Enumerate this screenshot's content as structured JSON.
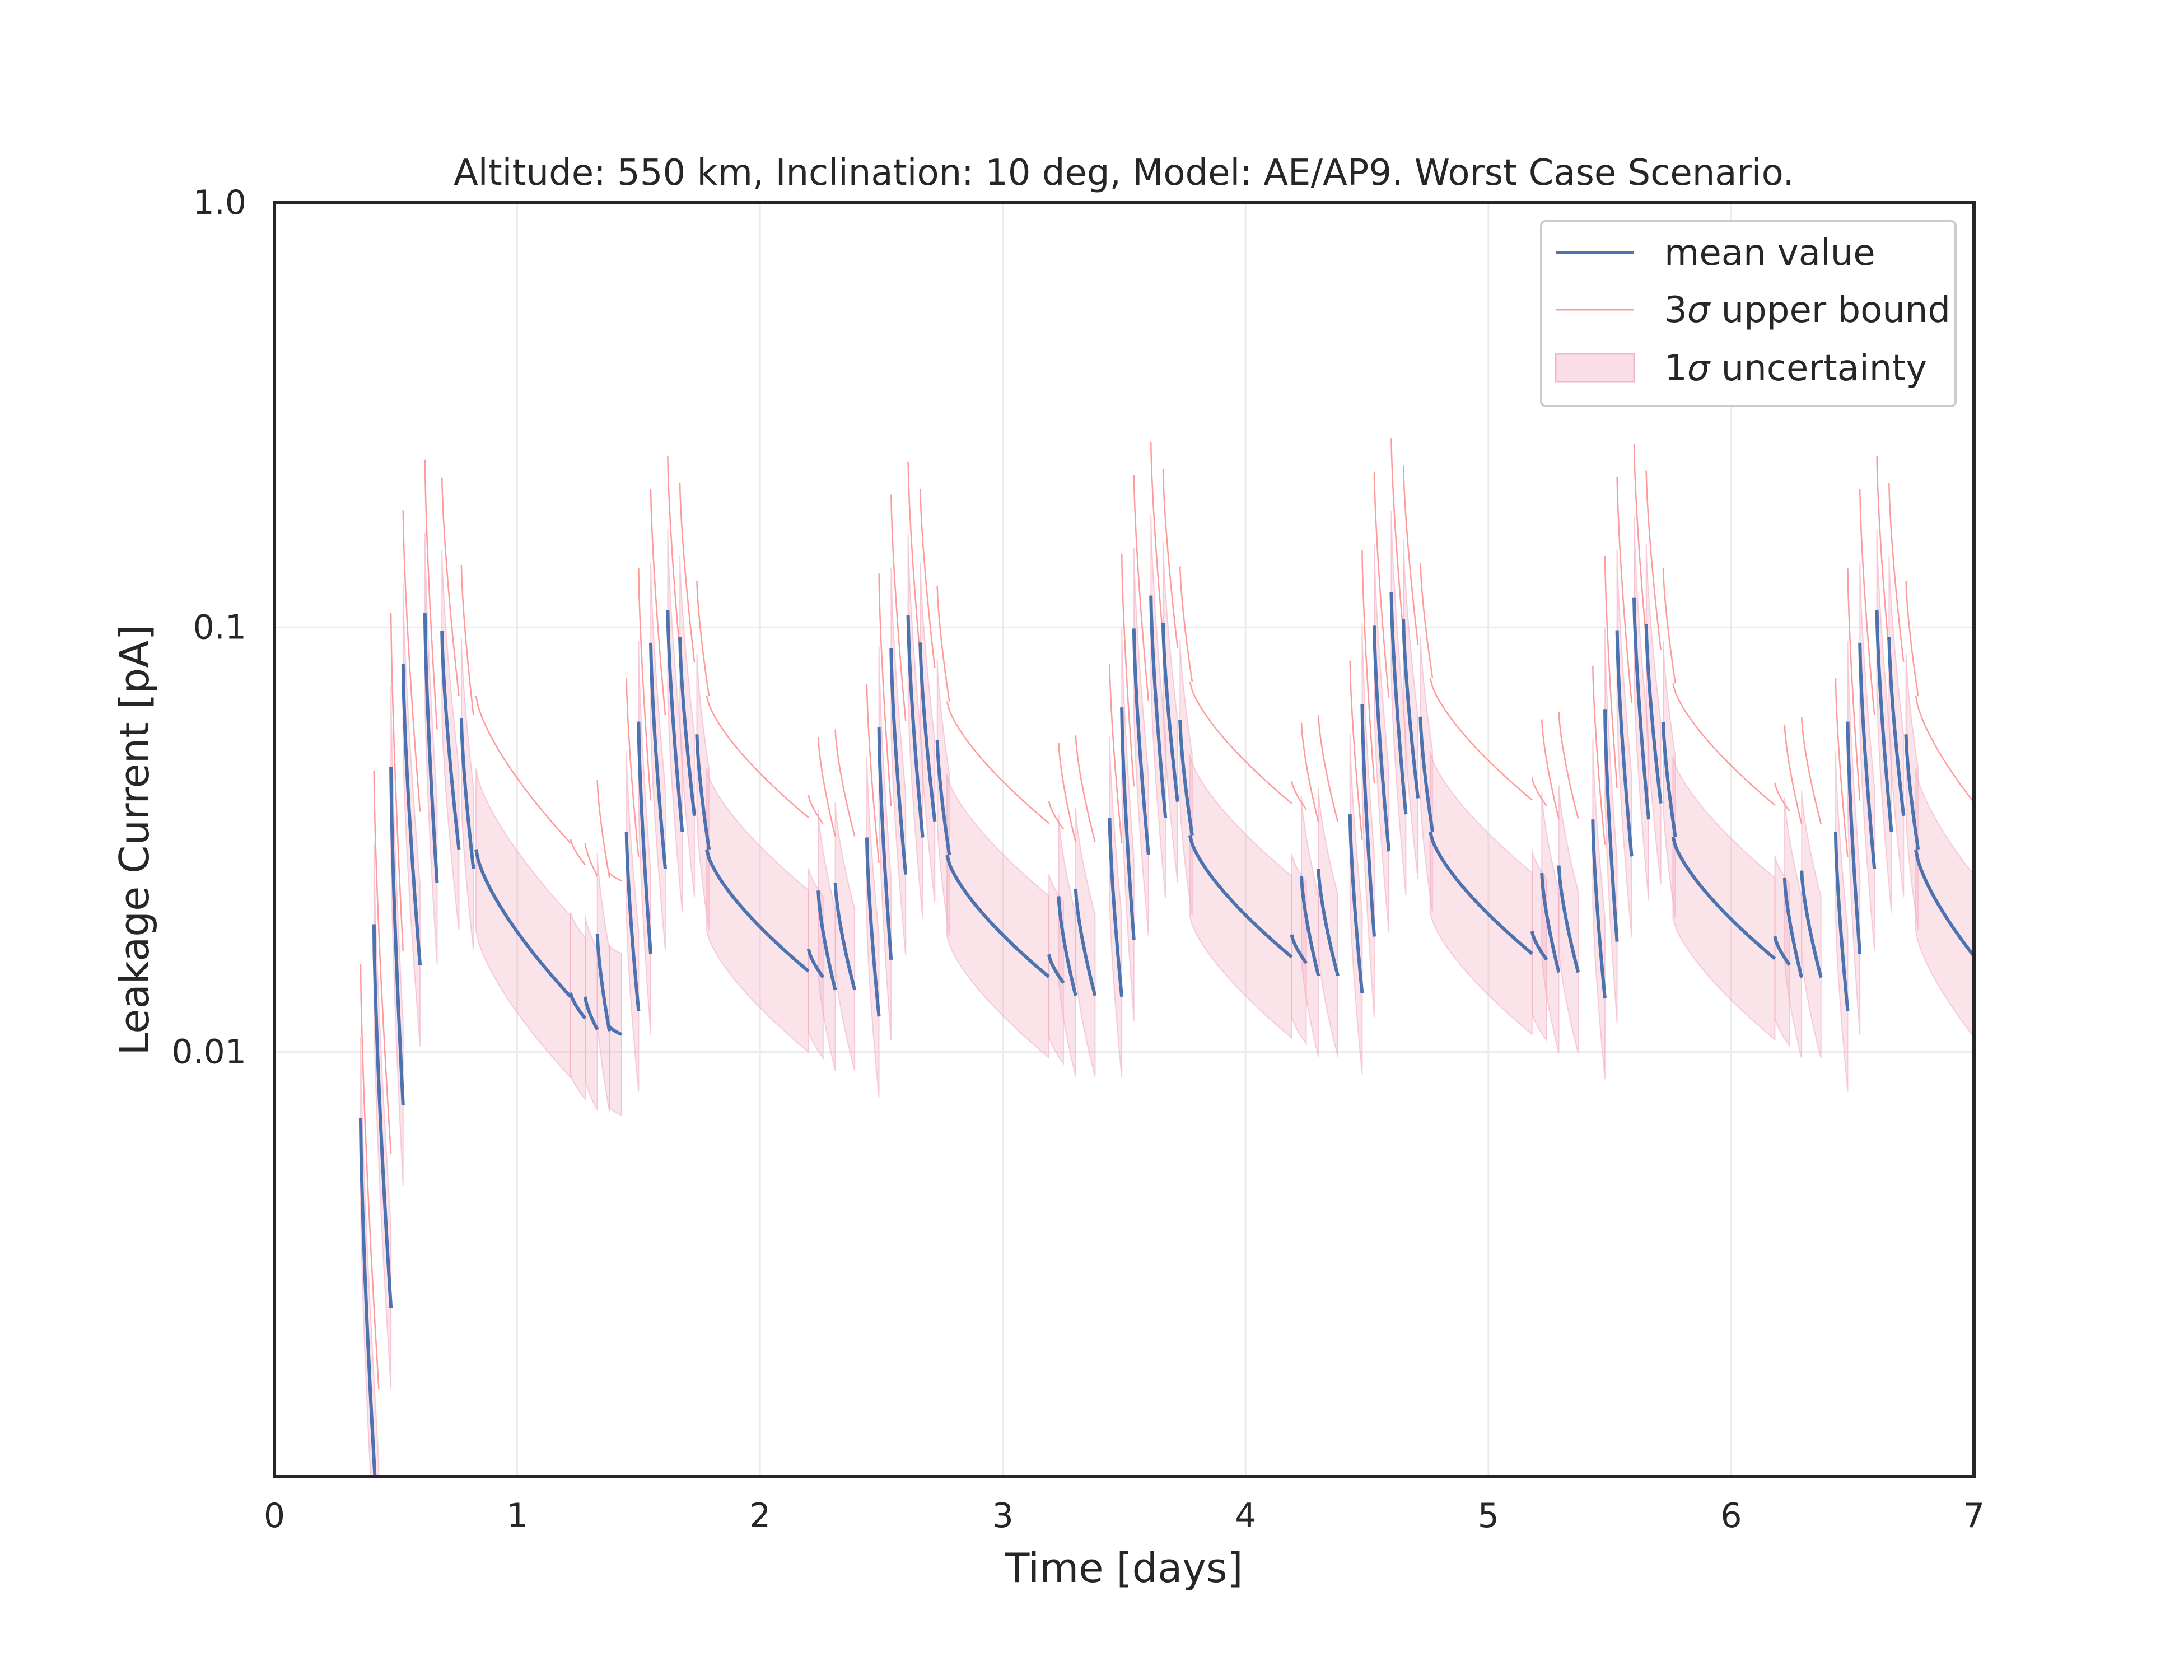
{
  "chart_data": {
    "type": "line",
    "title": "Altitude: 550 km, Inclination: 10 deg, Model: AE/AP9. Worst Case Scenario.",
    "xlabel": "Time [days]",
    "ylabel": "Leakage Current [pA]",
    "xlim": [
      0,
      7
    ],
    "ylim": [
      0.001,
      1.0
    ],
    "yscale": "log",
    "grid": true,
    "legend_position": "top-right",
    "x_ticks": [
      {
        "value": 0,
        "label": "0"
      },
      {
        "value": 1,
        "label": "1"
      },
      {
        "value": 2,
        "label": "2"
      },
      {
        "value": 3,
        "label": "3"
      },
      {
        "value": 4,
        "label": "4"
      },
      {
        "value": 5,
        "label": "5"
      },
      {
        "value": 6,
        "label": "6"
      },
      {
        "value": 7,
        "label": "7"
      }
    ],
    "y_ticks": [
      {
        "value": 0.01,
        "label": "0.01"
      },
      {
        "value": 0.1,
        "label": "0.1"
      },
      {
        "value": 1.0,
        "label": "1.0"
      }
    ],
    "series": [
      {
        "name": "mean value",
        "label_prefix": "",
        "label_sigma": "",
        "label_rest": "mean value",
        "kind": "line",
        "color": "#4c72b0"
      },
      {
        "name": "3σ upper bound",
        "label_prefix": "3",
        "label_sigma": "σ",
        "label_rest": " upper bound",
        "kind": "line",
        "color": "#ff9a9a"
      },
      {
        "name": "1σ uncertainty",
        "label_prefix": "1",
        "label_sigma": "σ",
        "label_rest": " uncertainty",
        "kind": "band",
        "color": "#f4b6c8"
      }
    ],
    "model": {
      "decay_exponent": 0.7,
      "sigma1_factor": 1.55,
      "sigma3_factor": 2.3,
      "first_day_segments": [
        {
          "t0": 0.355,
          "t1": 0.43,
          "peak": 0.007,
          "end": 0.0007
        },
        {
          "t0": 0.41,
          "t1": 0.48,
          "peak": 0.02,
          "end": 0.0025
        },
        {
          "t0": 0.48,
          "t1": 0.53,
          "peak": 0.047,
          "end": 0.0075
        },
        {
          "t0": 0.53,
          "t1": 0.6,
          "peak": 0.082,
          "end": 0.016
        },
        {
          "t0": 0.62,
          "t1": 0.67,
          "peak": 0.108,
          "end": 0.025
        },
        {
          "t0": 0.69,
          "t1": 0.76,
          "peak": 0.098,
          "end": 0.03
        },
        {
          "t0": 0.77,
          "t1": 0.82,
          "peak": 0.061,
          "end": 0.027
        },
        {
          "t0": 0.83,
          "t1": 1.22,
          "peak": 0.03,
          "end": 0.0135
        },
        {
          "t0": 1.22,
          "t1": 1.28,
          "peak": 0.0138,
          "end": 0.012
        },
        {
          "t0": 1.28,
          "t1": 1.33,
          "peak": 0.0135,
          "end": 0.0113
        },
        {
          "t0": 1.33,
          "t1": 1.38,
          "peak": 0.019,
          "end": 0.0112
        },
        {
          "t0": 1.38,
          "t1": 1.43,
          "peak": 0.0115,
          "end": 0.011
        }
      ],
      "cycle_period": 0.99,
      "cycle_starts": [
        1.45,
        2.44,
        3.44,
        4.43,
        5.43,
        6.43
      ],
      "cycle_scale": [
        1.0,
        0.97,
        1.08,
        1.1,
        1.07,
        1.0
      ],
      "cycle_segments": [
        {
          "dt": 0.0,
          "dt1": 0.05,
          "peak": 0.033,
          "end": 0.0125
        },
        {
          "dt": 0.05,
          "dt1": 0.1,
          "peak": 0.06,
          "end": 0.017
        },
        {
          "dt": 0.1,
          "dt1": 0.16,
          "peak": 0.092,
          "end": 0.027
        },
        {
          "dt": 0.17,
          "dt1": 0.23,
          "peak": 0.11,
          "end": 0.033
        },
        {
          "dt": 0.22,
          "dt1": 0.28,
          "peak": 0.095,
          "end": 0.036
        },
        {
          "dt": 0.29,
          "dt1": 0.34,
          "peak": 0.056,
          "end": 0.03
        },
        {
          "dt": 0.33,
          "dt1": 0.75,
          "peak": 0.03,
          "end": 0.0155
        },
        {
          "dt": 0.75,
          "dt1": 0.81,
          "peak": 0.0175,
          "end": 0.015
        },
        {
          "dt": 0.79,
          "dt1": 0.86,
          "peak": 0.024,
          "end": 0.014
        },
        {
          "dt": 0.86,
          "dt1": 0.94,
          "peak": 0.025,
          "end": 0.014
        }
      ]
    }
  }
}
